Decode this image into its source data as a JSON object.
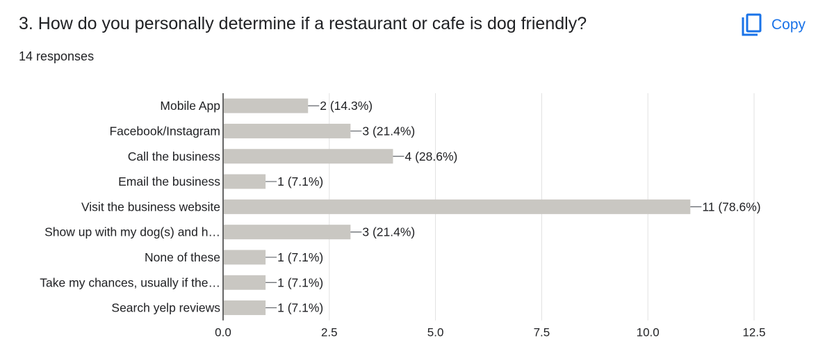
{
  "question": {
    "title": "3. How do you personally determine if a restaurant or cafe is dog friendly?",
    "responses": "14 responses"
  },
  "copy_button": {
    "label": "Copy",
    "icon": "copy-icon",
    "color": "#1a73e8"
  },
  "chart_data": {
    "type": "bar",
    "orientation": "horizontal",
    "categories": [
      "Mobile App",
      "Facebook/Instagram",
      "Call the business",
      "Email the business",
      "Visit the business website",
      "Show up with my dog(s) and h…",
      "None of these",
      "Take my chances, usually if the…",
      "Search yelp reviews"
    ],
    "values": [
      2,
      3,
      4,
      1,
      11,
      3,
      1,
      1,
      1
    ],
    "data_labels": [
      "2 (14.3%)",
      "3 (21.4%)",
      "4 (28.6%)",
      "1 (7.1%)",
      "11 (78.6%)",
      "3 (21.4%)",
      "1 (7.1%)",
      "1 (7.1%)",
      "1 (7.1%)"
    ],
    "xlim": [
      0,
      12.5
    ],
    "xticks": [
      0,
      2.5,
      5,
      7.5,
      10,
      12.5
    ],
    "xtick_labels": [
      "0.0",
      "2.5",
      "5.0",
      "7.5",
      "10.0",
      "12.5"
    ],
    "grid": true,
    "bar_color": "#c9c7c2",
    "gridline_color": "#e0e0e0"
  }
}
